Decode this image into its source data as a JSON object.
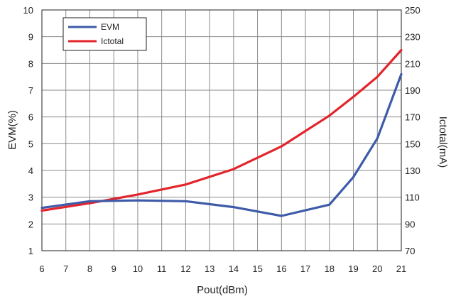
{
  "chart_data": {
    "type": "line",
    "xlabel": "Pout(dBm)",
    "ylabel_left": "EVM(%)",
    "ylabel_right": "Ictotal(mA)",
    "x_ticks": [
      6,
      7,
      8,
      9,
      10,
      11,
      12,
      13,
      14,
      15,
      16,
      17,
      18,
      19,
      20,
      21
    ],
    "xlim": [
      6,
      21
    ],
    "ylim_left": [
      1,
      10
    ],
    "y_ticks_left": [
      1,
      2,
      3,
      4,
      5,
      6,
      7,
      8,
      9,
      10
    ],
    "ylim_right": [
      70,
      250
    ],
    "y_ticks_right": [
      70,
      90,
      110,
      130,
      150,
      170,
      190,
      210,
      230,
      250
    ],
    "grid": true,
    "legend": {
      "placement": "top-left"
    },
    "series": [
      {
        "name": "EVM",
        "axis": "left",
        "color": "#3e5ba9",
        "x": [
          6,
          8,
          10,
          12,
          14,
          16,
          18,
          19,
          20,
          21
        ],
        "y": [
          2.6,
          2.85,
          2.88,
          2.85,
          2.63,
          2.3,
          2.72,
          3.75,
          5.2,
          7.6
        ]
      },
      {
        "name": "Ictotal",
        "axis": "right",
        "color": "#e3242b",
        "x": [
          6,
          8,
          10,
          12,
          14,
          16,
          18,
          19,
          20,
          21
        ],
        "y": [
          100,
          105.5,
          112,
          119.5,
          131,
          148,
          171,
          185,
          200,
          220
        ]
      }
    ]
  }
}
